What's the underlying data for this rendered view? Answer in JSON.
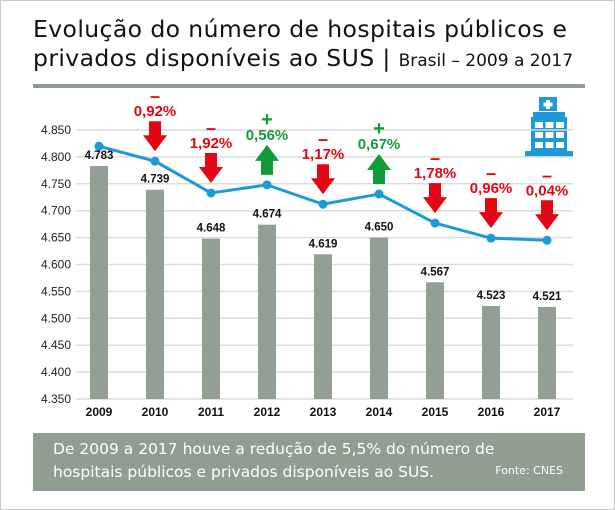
{
  "title": {
    "main_line1": "Evolução do número de hospitais públicos e",
    "main_line2": "privados disponíveis ao SUS",
    "separator": "|",
    "subtitle": "Brasil – 2009 a 2017"
  },
  "note": {
    "text": "De 2009 a 2017 houve a redução de 5,5% do número de hospitais públicos e privados disponíveis ao SUS.",
    "source": "Fonte: CNES"
  },
  "colors": {
    "bar": "#949f94",
    "line": "#1e9ad6",
    "decrease": "#e30613",
    "increase": "#139a3a",
    "icon": "#1e9ad6",
    "rule": "#8f9c90"
  },
  "icons": {
    "hospital": "hospital-building-icon",
    "down": "arrow-down-icon",
    "up": "arrow-up-icon"
  },
  "chart_data": {
    "type": "bar",
    "categories": [
      "2009",
      "2010",
      "2011",
      "2012",
      "2013",
      "2014",
      "2015",
      "2016",
      "2017"
    ],
    "values": [
      4783,
      4739,
      4648,
      4674,
      4619,
      4650,
      4567,
      4523,
      4521
    ],
    "value_labels": [
      "4.783",
      "4.739",
      "4.648",
      "4.674",
      "4.619",
      "4.650",
      "4.567",
      "4.523",
      "4.521"
    ],
    "trend_line": [
      4820,
      4792,
      4733,
      4748,
      4712,
      4731,
      4677,
      4649,
      4645
    ],
    "changes": [
      null,
      {
        "sign": "-",
        "label": "0,92%",
        "direction": "down"
      },
      {
        "sign": "-",
        "label": "1,92%",
        "direction": "down"
      },
      {
        "sign": "+",
        "label": "0,56%",
        "direction": "up"
      },
      {
        "sign": "-",
        "label": "1,17%",
        "direction": "down"
      },
      {
        "sign": "+",
        "label": "0,67%",
        "direction": "up"
      },
      {
        "sign": "-",
        "label": "1,78%",
        "direction": "down"
      },
      {
        "sign": "-",
        "label": "0,96%",
        "direction": "down"
      },
      {
        "sign": "-",
        "label": "0,04%",
        "direction": "down"
      }
    ],
    "yticks": [
      "4.350",
      "4.400",
      "4.450",
      "4.500",
      "4.550",
      "4.600",
      "4.650",
      "4.700",
      "4.750",
      "4.800",
      "4.850"
    ],
    "ylim": [
      4350,
      4850
    ],
    "grid": true,
    "xlabel": "",
    "ylabel": ""
  }
}
